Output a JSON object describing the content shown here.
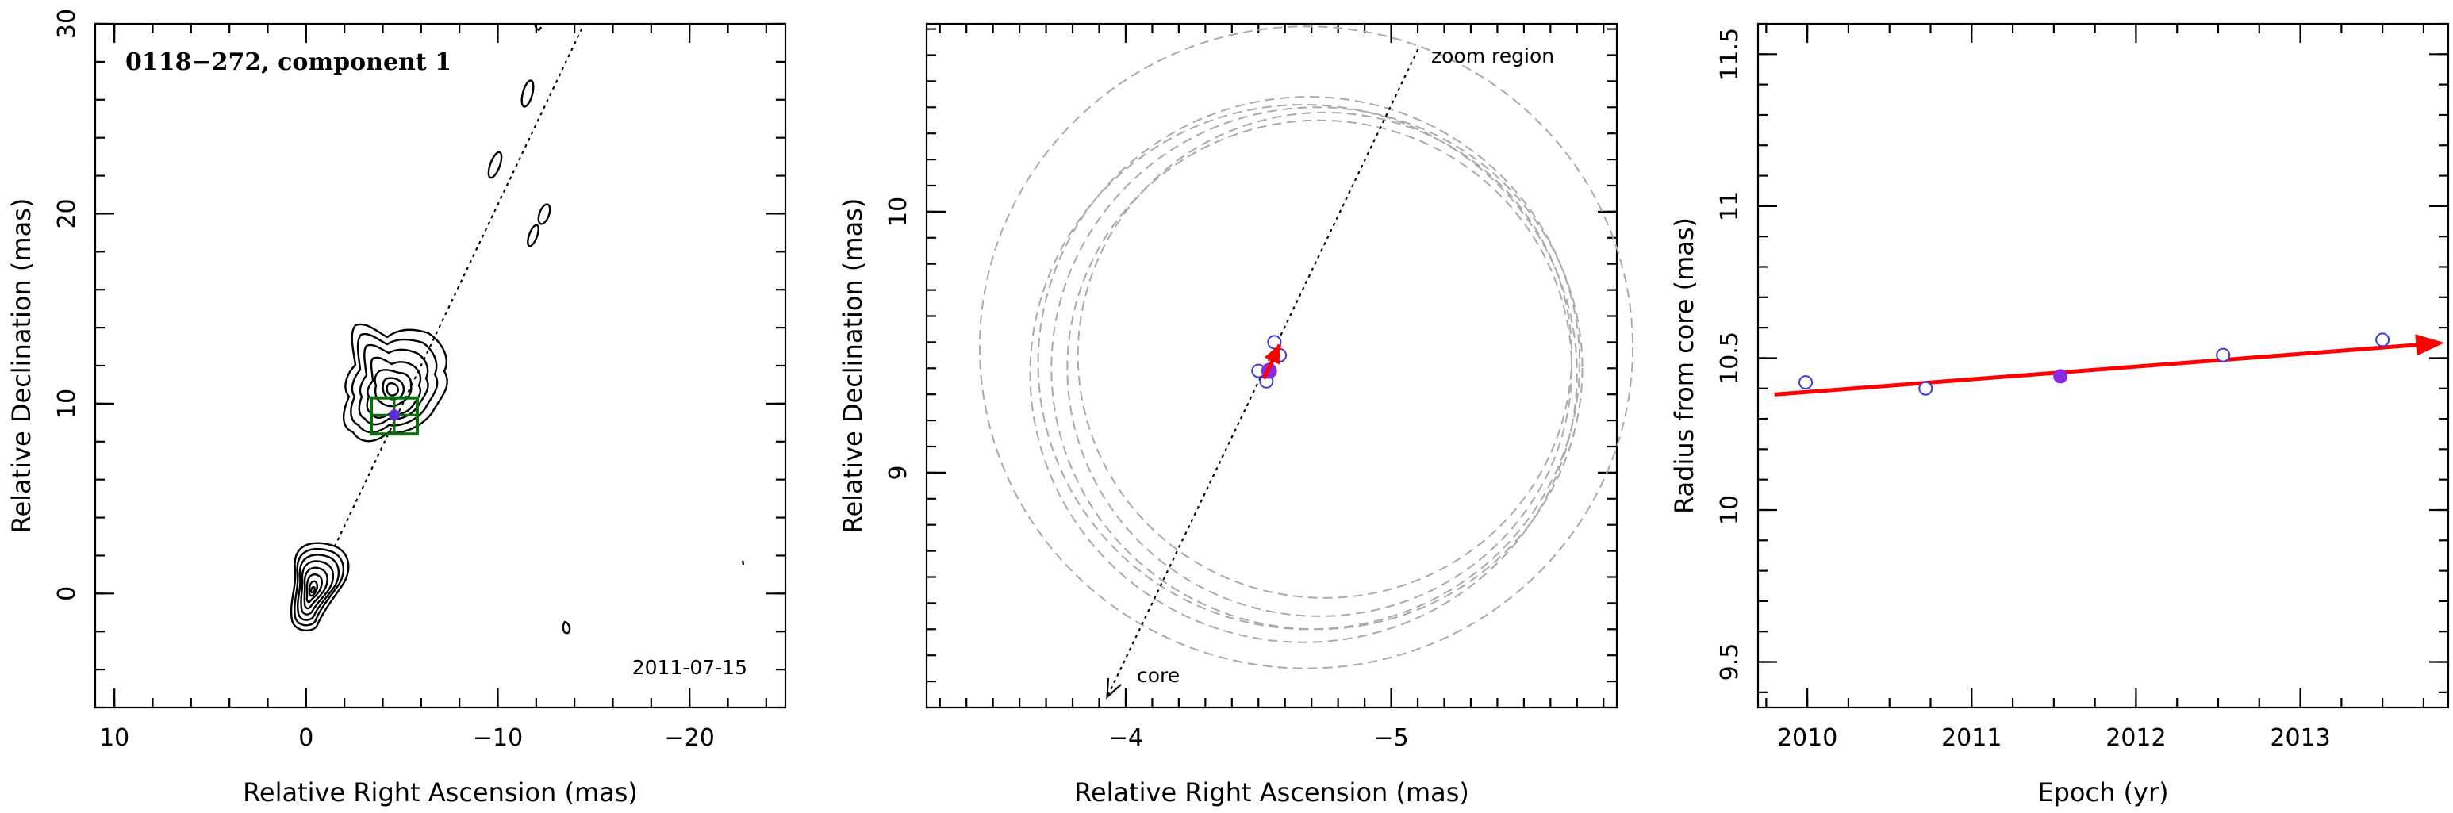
{
  "chart_data": [
    {
      "type": "contour",
      "title": "0118−272, component 1",
      "date_label": "2011-07-15",
      "xlabel": "Relative Right Ascension (mas)",
      "ylabel": "Relative Declination (mas)",
      "xlim": [
        11,
        -25
      ],
      "ylim": [
        -6,
        30
      ],
      "x_reversed": true,
      "x_ticks": [
        10,
        0,
        -10,
        -20
      ],
      "x_tick_labels": [
        "10",
        "0",
        "−10",
        "−20"
      ],
      "y_ticks": [
        0,
        10,
        20,
        30
      ],
      "y_tick_labels": [
        "0",
        "10",
        "20",
        "30"
      ],
      "core_position": [
        0,
        0
      ],
      "component_position": [
        -4.6,
        9.4
      ],
      "jet_direction_line": {
        "from": [
          -1.5,
          2.5
        ],
        "to": [
          -14.5,
          30
        ]
      },
      "zoom_region": {
        "x": [
          -3.4,
          -5.8
        ],
        "y": [
          8.4,
          10.3
        ],
        "color": "#0a6e0a"
      },
      "colors": {
        "contours": "#000000",
        "component": "#5b2bd6",
        "zoom_box": "#0a6e0a"
      }
    },
    {
      "type": "scatter",
      "xlabel": "Relative Right Ascension (mas)",
      "ylabel": "Relative Declination (mas)",
      "xlim": [
        -3.25,
        -5.85
      ],
      "ylim": [
        8.1,
        10.72
      ],
      "x_reversed": true,
      "x_ticks": [
        -4,
        -5
      ],
      "x_tick_labels": [
        "−4",
        "−5"
      ],
      "y_ticks": [
        9,
        10
      ],
      "y_tick_labels": [
        "9",
        "10"
      ],
      "annotations": [
        "zoom region",
        "core"
      ],
      "series": [
        {
          "name": "",
          "marker": "open-circle",
          "color": "#3a3ae8",
          "x": [
            -4.5,
            -4.56,
            -4.53,
            -4.58
          ],
          "y": [
            9.39,
            9.5,
            9.35,
            9.45
          ]
        },
        {
          "name": "",
          "marker": "filled-circle",
          "color": "#8a2be2",
          "x": [
            -4.54
          ],
          "y": [
            9.39
          ]
        }
      ],
      "fit_arrow": {
        "from": [
          -4.52,
          9.36
        ],
        "to": [
          -4.58,
          9.49
        ],
        "color": "#ff0000"
      },
      "core_arrow": {
        "from": [
          -5.1,
          10.62
        ],
        "to": [
          -3.93,
          8.14
        ]
      },
      "beam_circles": [
        {
          "cx": -4.68,
          "cy": 9.48,
          "r": 1.23
        },
        {
          "cx": -4.69,
          "cy": 9.42,
          "r": 1.02
        },
        {
          "cx": -4.67,
          "cy": 9.38,
          "r": 1.03
        },
        {
          "cx": -4.72,
          "cy": 9.4,
          "r": 1.0
        },
        {
          "cx": -4.73,
          "cy": 9.4,
          "r": 0.95
        },
        {
          "cx": -4.75,
          "cy": 9.45,
          "r": 0.93
        }
      ]
    },
    {
      "type": "scatter",
      "xlabel": "Epoch (yr)",
      "ylabel": "Radius from core (mas)",
      "xlim": [
        2009.7,
        2013.9
      ],
      "ylim": [
        9.35,
        11.6
      ],
      "x_ticks": [
        2010,
        2011,
        2012,
        2013
      ],
      "x_tick_labels": [
        "2010",
        "2011",
        "2012",
        "2013"
      ],
      "y_ticks": [
        9.5,
        10,
        10.5,
        11,
        11.5
      ],
      "y_tick_labels": [
        "9.5",
        "10",
        "10.5",
        "11",
        "11.5"
      ],
      "series": [
        {
          "name": "",
          "marker": "open-circle",
          "color": "#3a3ae8",
          "x": [
            2009.99,
            2010.72,
            2012.53,
            2013.5
          ],
          "y": [
            10.42,
            10.4,
            10.51,
            10.56
          ]
        },
        {
          "name": "",
          "marker": "filled-circle",
          "color": "#8a2be2",
          "x": [
            2011.54
          ],
          "y": [
            10.44
          ]
        }
      ],
      "fit_line": {
        "x": [
          2009.8,
          2013.87
        ],
        "y": [
          10.38,
          10.55
        ],
        "color": "#ff0000"
      }
    }
  ]
}
